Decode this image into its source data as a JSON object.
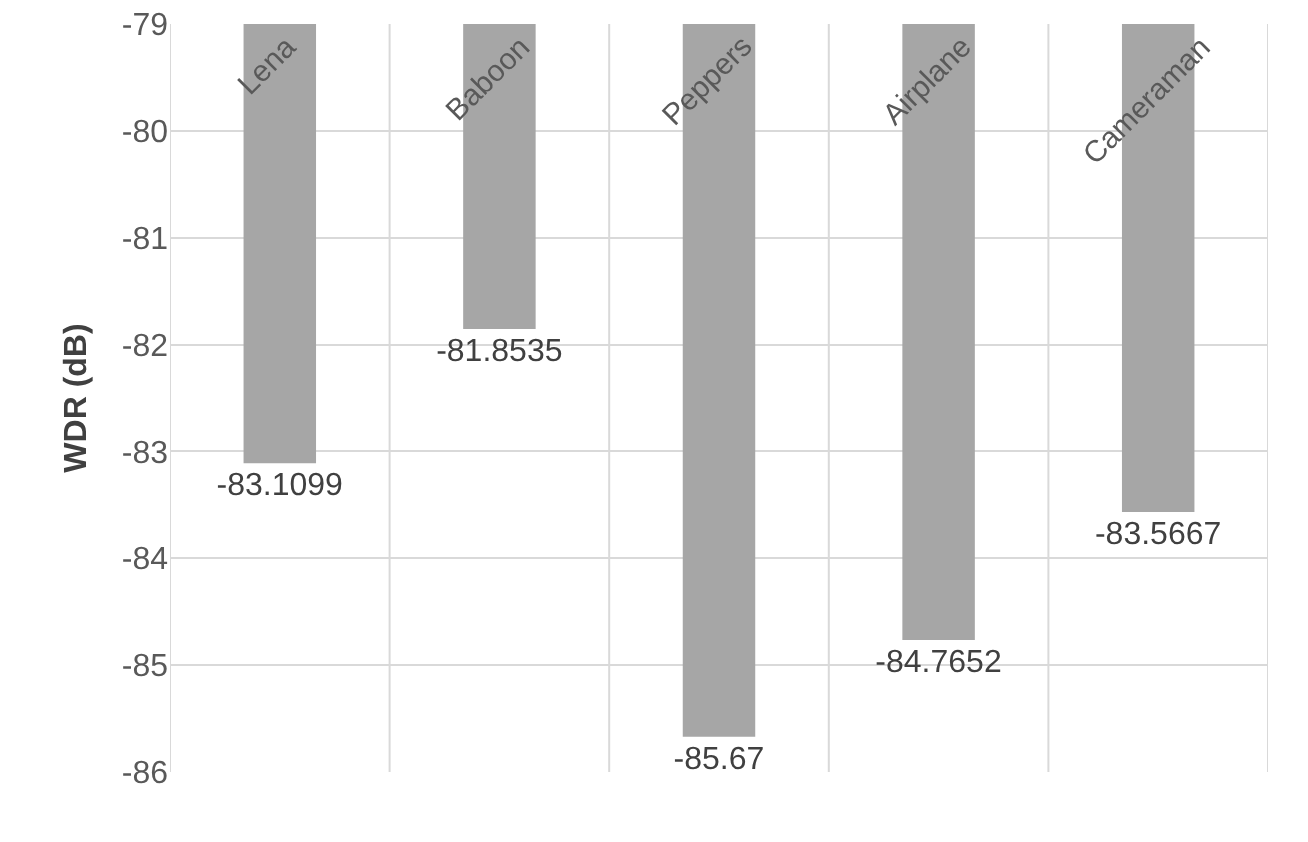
{
  "chart_data": {
    "type": "bar",
    "ylabel": "WDR (dB)",
    "categories": [
      "Lena",
      "Baboon",
      "Peppers",
      "Airplane",
      "Cameraman"
    ],
    "values": [
      -83.1099,
      -81.8535,
      -85.67,
      -84.7652,
      -83.5667
    ],
    "color": "#a6a6a6",
    "ylim": [
      -86,
      -79
    ],
    "yticks": [
      -86,
      -85,
      -84,
      -83,
      -82,
      -81,
      -80,
      -79
    ],
    "grid": true,
    "data_labels": true
  }
}
